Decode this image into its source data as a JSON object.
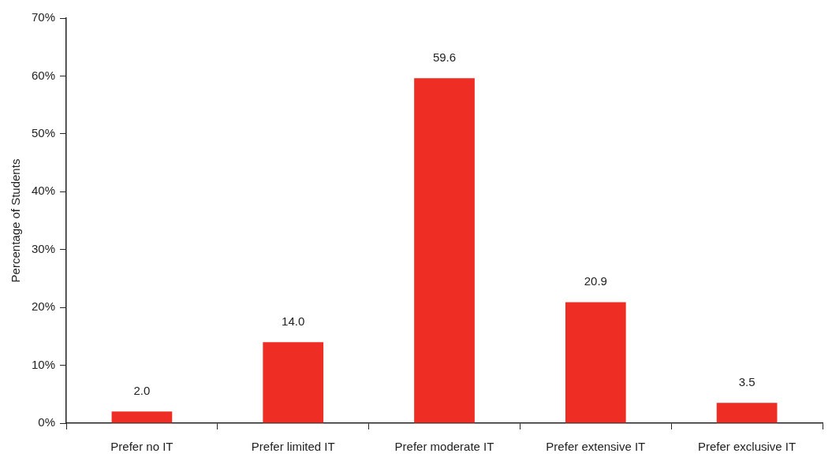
{
  "chart_data": {
    "type": "bar",
    "ylabel": "Percentage of Students",
    "categories": [
      "Prefer no IT",
      "Prefer limited IT",
      "Prefer moderate IT",
      "Prefer extensive IT",
      "Prefer exclusive IT"
    ],
    "values": [
      2.0,
      14.0,
      59.6,
      20.9,
      3.5
    ],
    "value_labels": [
      "2.0",
      "14.0",
      "59.6",
      "20.9",
      "3.5"
    ],
    "color": "#ee2e24",
    "ylim": [
      0,
      70
    ],
    "yticks": [
      {
        "value": 0,
        "label": "0%"
      },
      {
        "value": 10,
        "label": "10%"
      },
      {
        "value": 20,
        "label": "20%"
      },
      {
        "value": 30,
        "label": "30%"
      },
      {
        "value": 40,
        "label": "40%"
      },
      {
        "value": 50,
        "label": "50%"
      },
      {
        "value": 60,
        "label": "60%"
      },
      {
        "value": 70,
        "label": "70%"
      }
    ],
    "grid": false,
    "legend": false
  }
}
